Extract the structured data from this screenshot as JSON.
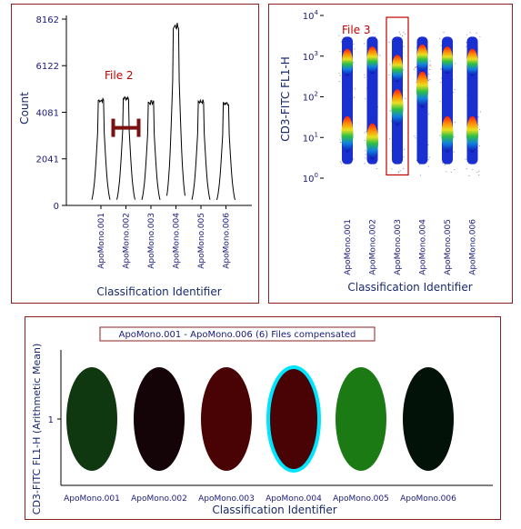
{
  "colors": {
    "frame": "#8b2020",
    "annotation": "#c00000",
    "gate_bar": "#7a1010",
    "axis_label": "#1a2a6a",
    "tick_label": "#1a1a7a",
    "highlight": "#00e5ff"
  },
  "chart_data": [
    {
      "type": "line",
      "subtype": "overlaid histograms",
      "ylabel": "Count",
      "xlabel": "Classification Identifier",
      "ylim": [
        0,
        8162
      ],
      "yticks": [
        0,
        2041,
        4081,
        6122,
        8162
      ],
      "categories": [
        "ApoMono.001",
        "ApoMono.002",
        "ApoMono.003",
        "ApoMono.004",
        "ApoMono.005",
        "ApoMono.006"
      ],
      "peak_values": [
        4700,
        4800,
        4600,
        8000,
        4650,
        4550
      ],
      "annotation": "File 2",
      "gate": {
        "category": "ApoMono.002",
        "level": 3400
      }
    },
    {
      "type": "scatter",
      "subtype": "density dot plot",
      "ylabel": "CD3-FITC FL1-H",
      "xlabel": "Classification Identifier",
      "yscale": "log",
      "ylim": [
        1,
        10000
      ],
      "yticks": [
        "10^0",
        "10^1",
        "10^2",
        "10^3",
        "10^4"
      ],
      "categories": [
        "ApoMono.001",
        "ApoMono.002",
        "ApoMono.003",
        "ApoMono.004",
        "ApoMono.005",
        "ApoMono.006"
      ],
      "hot_spots": [
        [
          12,
          700
        ],
        [
          8,
          800
        ],
        [
          55,
          500
        ],
        [
          150,
          900
        ],
        [
          12,
          800
        ],
        [
          12,
          700
        ]
      ],
      "annotation": "File 3",
      "gate": {
        "category": "ApoMono.003",
        "yrange": [
          1.2,
          9000
        ]
      }
    },
    {
      "type": "heatmap",
      "subtype": "ellipse color map",
      "title": "ApoMono.001 - ApoMono.006 (6) Files compensated",
      "ylabel": "CD3-FITC FL1-H (Arithmetic Mean)",
      "xlabel": "Classification Identifier",
      "yticks": [
        "1"
      ],
      "categories": [
        "ApoMono.001",
        "ApoMono.002",
        "ApoMono.003",
        "ApoMono.004",
        "ApoMono.005",
        "ApoMono.006"
      ],
      "colors": [
        "#103810",
        "#140407",
        "#4a0305",
        "#4a0304",
        "#1c7a14",
        "#021208"
      ],
      "highlighted": "ApoMono.004"
    }
  ]
}
